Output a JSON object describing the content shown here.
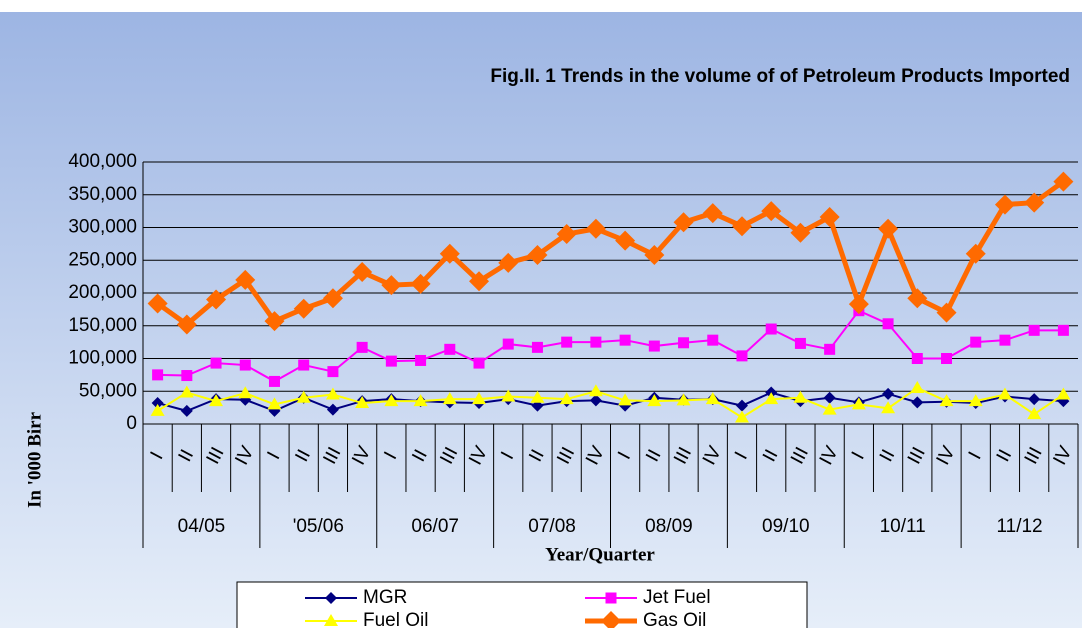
{
  "chart_data": {
    "type": "line",
    "title": "Fig.II. 1 Trends in the volume of of Petroleum Products Imported",
    "y_axis_label": "In '000 Birr",
    "x_axis_label": "Year/Quarter",
    "categories": [
      "I",
      "II",
      "III",
      "IV",
      "I",
      "II",
      "III",
      "IV",
      "I",
      "II",
      "III",
      "IV",
      "I",
      "II",
      "III",
      "IV",
      "I",
      "II",
      "III",
      "IV",
      "I",
      "II",
      "III",
      "IV",
      "I",
      "II",
      "III",
      "IV",
      "I",
      "II",
      "III",
      "IV"
    ],
    "groups": [
      "04/05",
      "'05/06",
      "06/07",
      "07/08",
      "08/09",
      "09/10",
      "10/11",
      "11/12"
    ],
    "ylim": [
      0,
      400000
    ],
    "yticks": [
      0,
      {
        "value": 50000,
        "label": "50,000"
      },
      {
        "value": 100000,
        "label": "100,000"
      },
      {
        "value": 150000,
        "label": "150,000"
      },
      {
        "value": 200000,
        "label": "200,000"
      },
      {
        "value": 250000,
        "label": "250,000"
      },
      {
        "value": 300000,
        "label": "300,000"
      },
      {
        "value": 350000,
        "label": "350,000"
      },
      {
        "value": 400000,
        "label": "400,000"
      }
    ],
    "grid": true,
    "series": [
      {
        "name": "MGR",
        "color": "#000080",
        "marker": "diamond",
        "values": [
          32000,
          20000,
          38000,
          37000,
          20000,
          40000,
          22000,
          35000,
          38000,
          35000,
          33000,
          32000,
          38000,
          28000,
          35000,
          36000,
          28000,
          40000,
          37000,
          38000,
          28000,
          48000,
          35000,
          40000,
          33000,
          46000,
          33000,
          34000,
          32000,
          42000,
          38000,
          35000
        ]
      },
      {
        "name": "Jet Fuel",
        "color": "#ff00ff",
        "marker": "square",
        "values": [
          75000,
          74000,
          93000,
          90000,
          65000,
          90000,
          80000,
          117000,
          96000,
          97000,
          114000,
          93000,
          122000,
          117000,
          125000,
          125000,
          128000,
          119000,
          124000,
          128000,
          104000,
          145000,
          123000,
          114000,
          173000,
          153000,
          100000,
          100000,
          125000,
          128000,
          143000,
          143000
        ]
      },
      {
        "name": "Fuel Oil",
        "color": "#ffff00",
        "marker": "triangle",
        "values": [
          20000,
          48000,
          35000,
          47000,
          30000,
          40000,
          45000,
          32000,
          35000,
          35000,
          38000,
          38000,
          42000,
          40000,
          38000,
          50000,
          36000,
          35000,
          36000,
          38000,
          10000,
          38000,
          40000,
          22000,
          30000,
          24000,
          55000,
          35000,
          35000,
          45000,
          15000,
          45000
        ]
      },
      {
        "name": "Gas Oil",
        "color": "#ff6a00",
        "marker": "bigdiamond",
        "values": [
          184000,
          152000,
          190000,
          220000,
          157000,
          176000,
          192000,
          232000,
          212000,
          214000,
          260000,
          218000,
          246000,
          258000,
          290000,
          298000,
          280000,
          258000,
          308000,
          322000,
          302000,
          325000,
          292000,
          316000,
          183000,
          298000,
          192000,
          170000,
          260000,
          335000,
          338000,
          370000
        ]
      }
    ]
  }
}
